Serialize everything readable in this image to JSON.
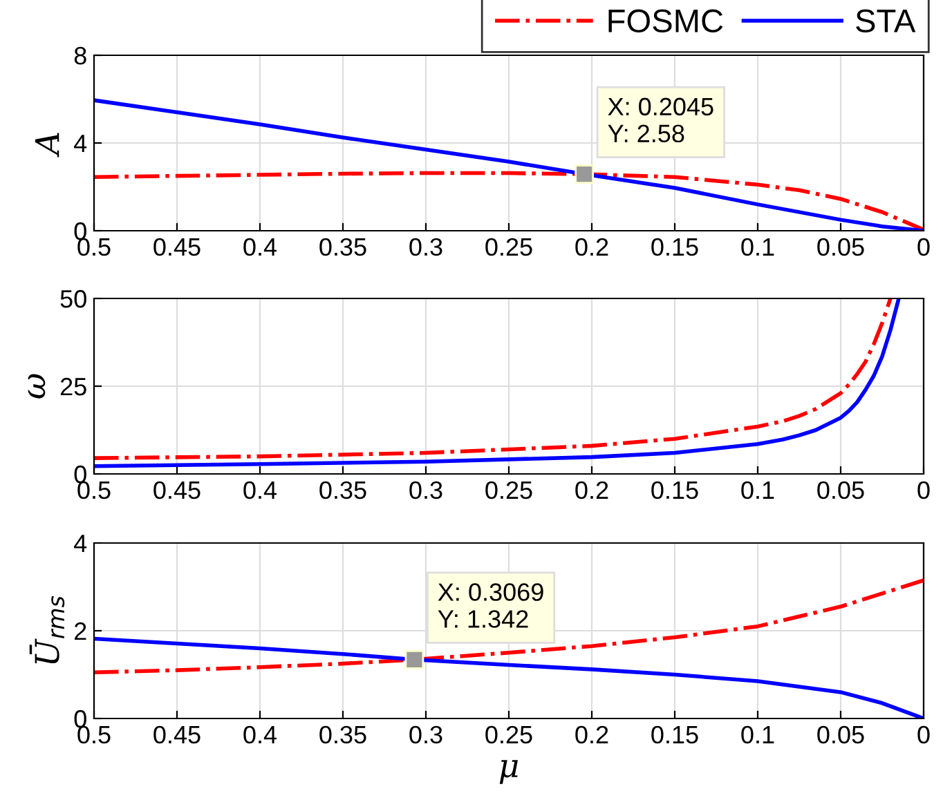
{
  "chart_data": [
    {
      "type": "line",
      "ylabel": "A",
      "xlim": [
        0.5,
        0
      ],
      "xticks": [
        0.5,
        0.45,
        0.4,
        0.35,
        0.3,
        0.25,
        0.2,
        0.15,
        0.1,
        0.05,
        0
      ],
      "ylim": [
        0,
        8
      ],
      "yticks": [
        0,
        4,
        8
      ],
      "grid": true,
      "legend": "top right",
      "series": [
        {
          "name": "FOSMC",
          "color": "#ff0000",
          "line_style": "dashdot",
          "x": [
            0.5,
            0.45,
            0.4,
            0.35,
            0.3,
            0.25,
            0.2045,
            0.15,
            0.1,
            0.075,
            0.05,
            0.025,
            0
          ],
          "values": [
            2.45,
            2.5,
            2.55,
            2.6,
            2.63,
            2.63,
            2.58,
            2.45,
            2.1,
            1.85,
            1.45,
            0.85,
            0.05
          ]
        },
        {
          "name": "STA",
          "color": "#0000ff",
          "line_style": "solid",
          "x": [
            0.5,
            0.45,
            0.4,
            0.35,
            0.3,
            0.25,
            0.2045,
            0.15,
            0.1,
            0.05,
            0.025,
            0
          ],
          "values": [
            5.95,
            5.4,
            4.85,
            4.25,
            3.7,
            3.15,
            2.58,
            1.95,
            1.2,
            0.5,
            0.2,
            0
          ]
        }
      ],
      "annotations": [
        {
          "text": "X: 0.2045\nY: 2.58",
          "x": 0.2045,
          "y": 2.58
        }
      ]
    },
    {
      "type": "line",
      "ylabel": "ω",
      "xlim": [
        0.5,
        0
      ],
      "xticks": [
        0.5,
        0.45,
        0.4,
        0.35,
        0.3,
        0.25,
        0.2,
        0.15,
        0.1,
        0.05,
        0
      ],
      "ylim": [
        0,
        50
      ],
      "yticks": [
        0,
        25,
        50
      ],
      "grid": true,
      "series": [
        {
          "color": "#ff0000",
          "line_style": "dashdot",
          "x": [
            0.5,
            0.4,
            0.3,
            0.25,
            0.2,
            0.15,
            0.1,
            0.085,
            0.075,
            0.065,
            0.05,
            0.045,
            0.04,
            0.035,
            0.03,
            0.025,
            0.02
          ],
          "values": [
            4.5,
            5,
            6,
            7,
            8,
            10,
            13.5,
            15,
            16.5,
            18.5,
            23,
            25.5,
            28.5,
            32,
            37,
            43,
            50
          ]
        },
        {
          "color": "#0000ff",
          "line_style": "solid",
          "x": [
            0.5,
            0.4,
            0.3,
            0.2,
            0.15,
            0.1,
            0.085,
            0.075,
            0.065,
            0.05,
            0.045,
            0.04,
            0.035,
            0.03,
            0.025,
            0.02,
            0.015
          ],
          "values": [
            2.2,
            2.8,
            3.5,
            4.8,
            6,
            8.5,
            9.8,
            11,
            12.5,
            16,
            18,
            20.5,
            24,
            28,
            33.5,
            41,
            50
          ]
        }
      ]
    },
    {
      "type": "line",
      "ylabel": "Ū$_{rms}$",
      "xlabel": "μ",
      "xlim": [
        0.5,
        0
      ],
      "xticks": [
        0.5,
        0.45,
        0.4,
        0.35,
        0.3,
        0.25,
        0.2,
        0.15,
        0.1,
        0.05,
        0
      ],
      "ylim": [
        0,
        4
      ],
      "yticks": [
        0,
        2,
        4
      ],
      "grid": true,
      "series": [
        {
          "color": "#ff0000",
          "line_style": "dashdot",
          "x": [
            0.5,
            0.45,
            0.4,
            0.35,
            0.3069,
            0.25,
            0.2,
            0.15,
            0.1,
            0.05,
            0.025,
            0
          ],
          "values": [
            1.05,
            1.1,
            1.17,
            1.25,
            1.342,
            1.5,
            1.65,
            1.85,
            2.1,
            2.55,
            2.85,
            3.15
          ]
        },
        {
          "color": "#0000ff",
          "line_style": "solid",
          "x": [
            0.5,
            0.45,
            0.4,
            0.35,
            0.3069,
            0.25,
            0.2,
            0.15,
            0.1,
            0.05,
            0.025,
            0
          ],
          "values": [
            1.82,
            1.71,
            1.6,
            1.47,
            1.342,
            1.22,
            1.12,
            1.0,
            0.85,
            0.6,
            0.35,
            0
          ]
        }
      ],
      "annotations": [
        {
          "text": "X: 0.3069\nY: 1.342",
          "x": 0.3069,
          "y": 1.342
        }
      ]
    }
  ]
}
